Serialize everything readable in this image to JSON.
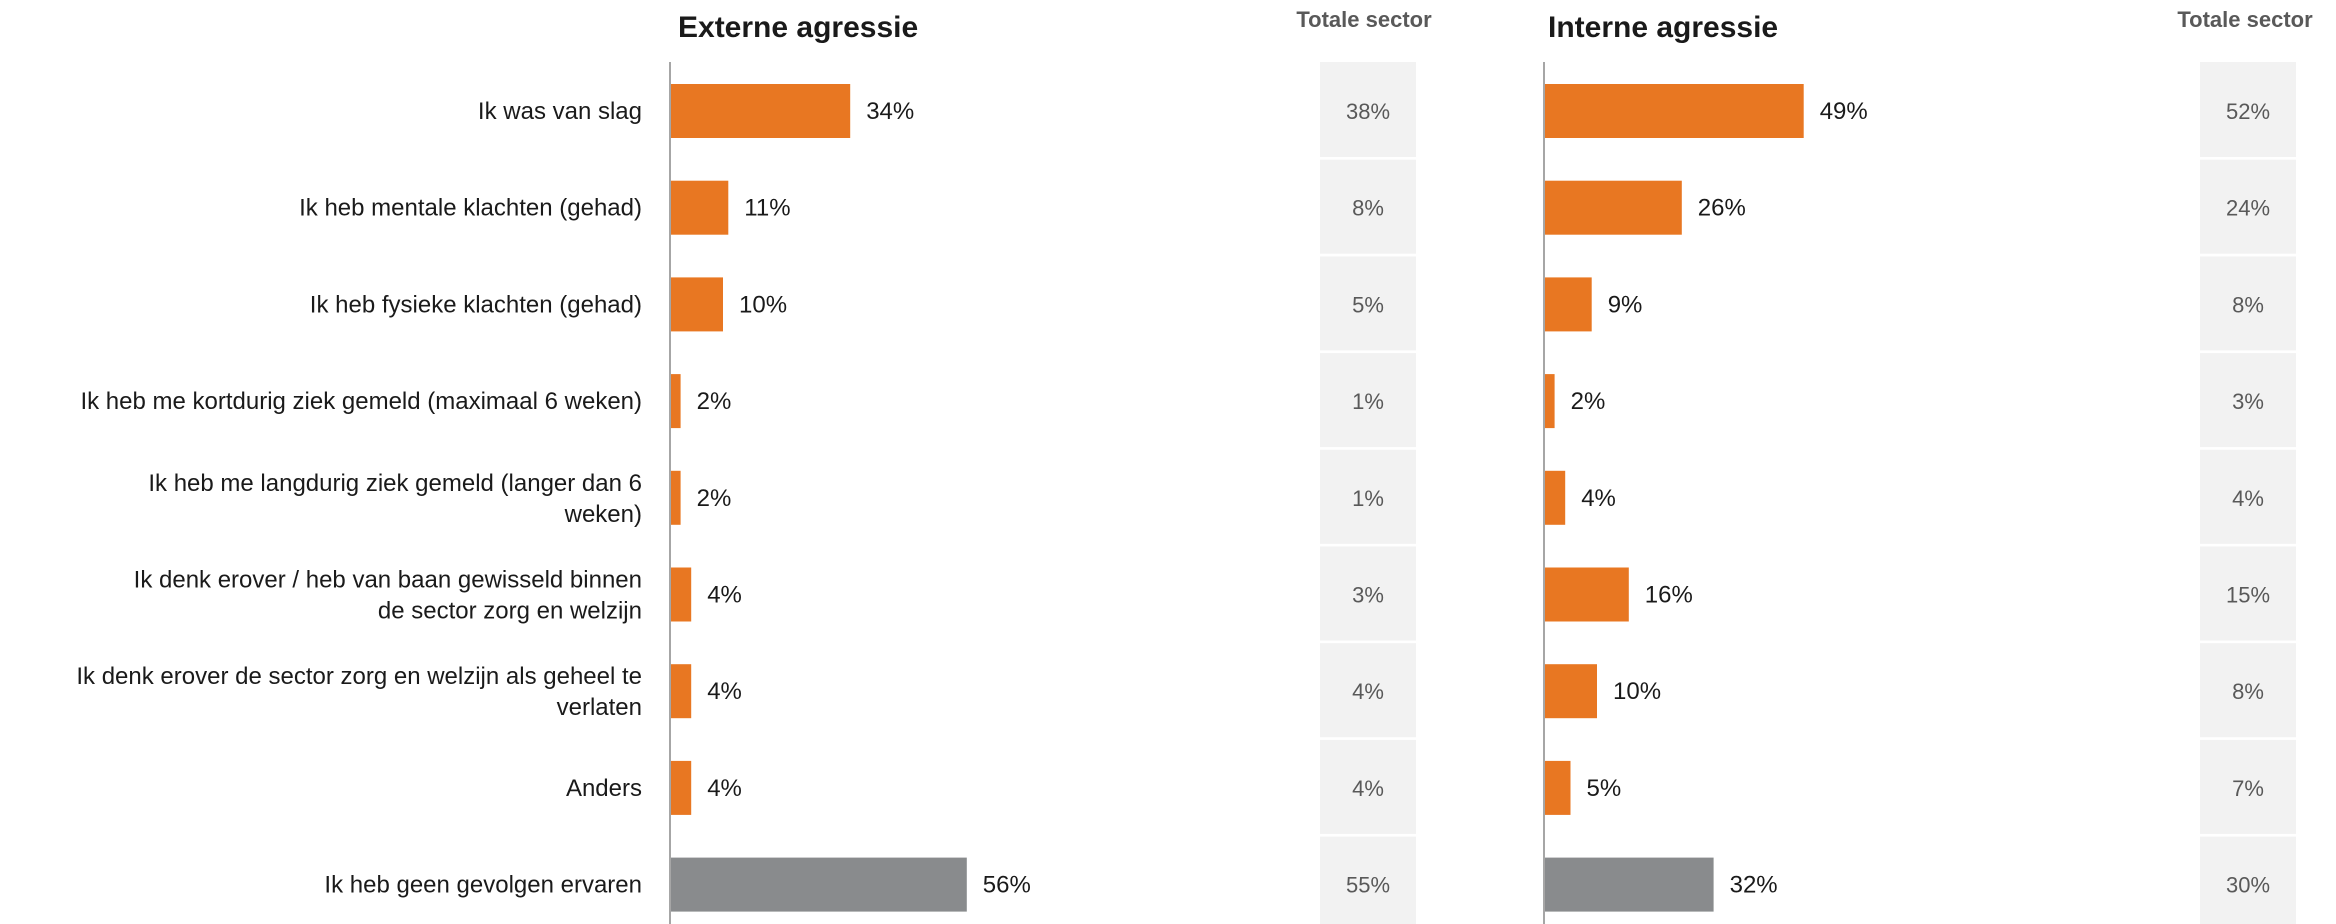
{
  "colors": {
    "bar": "#E87722",
    "bar_none": "#898B8D",
    "sector_box": "#F2F2F2",
    "axis": "#A6A6A6"
  },
  "chart_data": [
    {
      "type": "bar",
      "orientation": "horizontal",
      "title": "Externe agressie",
      "categories": [
        "Ik was van slag",
        "Ik heb mentale klachten (gehad)",
        "Ik heb fysieke klachten (gehad)",
        "Ik heb me kortdurig ziek gemeld (maximaal 6 weken)",
        "Ik heb me langdurig ziek gemeld (langer dan 6 weken)",
        "Ik denk erover / heb van baan gewisseld binnen de sector zorg en welzijn",
        "Ik denk erover de sector zorg en welzijn als geheel te verlaten",
        "Anders",
        "Ik heb geen gevolgen ervaren"
      ],
      "values": [
        34,
        11,
        10,
        2,
        2,
        4,
        4,
        4,
        56
      ],
      "value_labels": [
        "34%",
        "11%",
        "10%",
        "2%",
        "2%",
        "4%",
        "4%",
        "4%",
        "56%"
      ],
      "sector_header": "Totale sector",
      "sector_labels": [
        "38%",
        "8%",
        "5%",
        "1%",
        "1%",
        "3%",
        "4%",
        "4%",
        "55%"
      ],
      "xlim": [
        0,
        100
      ]
    },
    {
      "type": "bar",
      "orientation": "horizontal",
      "title": "Interne agressie",
      "categories": [
        "Ik was van slag",
        "Ik heb mentale klachten (gehad)",
        "Ik heb fysieke klachten (gehad)",
        "Ik heb me kortdurig ziek gemeld (maximaal 6 weken)",
        "Ik heb me langdurig ziek gemeld (langer dan 6 weken)",
        "Ik denk erover / heb van baan gewisseld binnen de sector zorg en welzijn",
        "Ik denk erover de sector zorg en welzijn als geheel te verlaten",
        "Anders",
        "Ik heb geen gevolgen ervaren"
      ],
      "values": [
        49,
        26,
        9,
        2,
        4,
        16,
        10,
        5,
        32
      ],
      "value_labels": [
        "49%",
        "26%",
        "9%",
        "2%",
        "4%",
        "16%",
        "10%",
        "5%",
        "32%"
      ],
      "sector_header": "Totale sector",
      "sector_labels": [
        "52%",
        "24%",
        "8%",
        "3%",
        "4%",
        "15%",
        "8%",
        "7%",
        "30%"
      ],
      "xlim": [
        0,
        100
      ]
    }
  ]
}
